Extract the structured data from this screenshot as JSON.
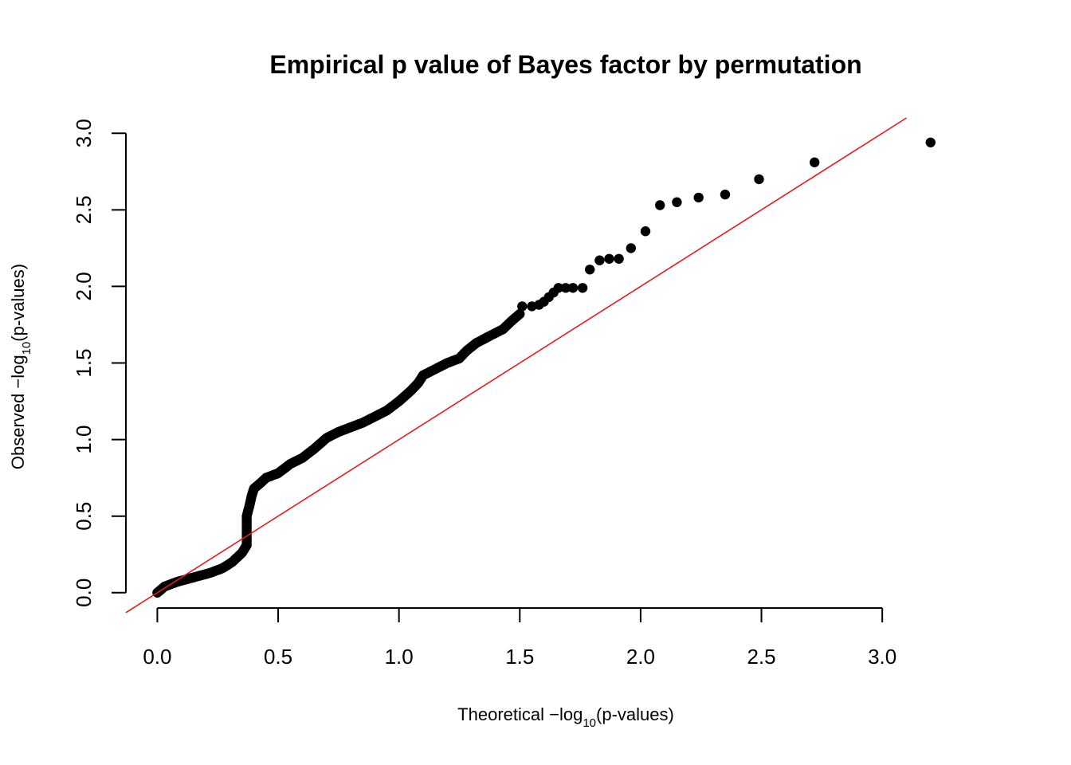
{
  "chart_data": {
    "type": "scatter",
    "title": "Empirical p value of Bayes factor by permutation",
    "xlabel": {
      "prefix": "Theoretical −log",
      "sub": "10",
      "suffix": "(p-values)"
    },
    "ylabel": {
      "prefix": "Observed −log",
      "sub": "10",
      "suffix": "(p-values)"
    },
    "xlim": [
      -0.13,
      3.26
    ],
    "ylim": [
      -0.1,
      3.1
    ],
    "x_ticks": [
      "0.0",
      "0.5",
      "1.0",
      "1.5",
      "2.0",
      "2.5",
      "3.0"
    ],
    "y_ticks": [
      "0.0",
      "0.5",
      "1.0",
      "1.5",
      "2.0",
      "2.5",
      "3.0"
    ],
    "grid": false,
    "reference_line": {
      "intercept": 0,
      "slope": 1,
      "color": "#e41a1c"
    },
    "point_color": "#000000",
    "curve_nodes": [
      [
        0.0,
        0.0
      ],
      [
        0.03,
        0.04
      ],
      [
        0.08,
        0.07
      ],
      [
        0.15,
        0.1
      ],
      [
        0.22,
        0.13
      ],
      [
        0.27,
        0.16
      ],
      [
        0.31,
        0.2
      ],
      [
        0.35,
        0.26
      ],
      [
        0.37,
        0.31
      ],
      [
        0.37,
        0.41
      ],
      [
        0.37,
        0.5
      ],
      [
        0.38,
        0.56
      ],
      [
        0.39,
        0.63
      ],
      [
        0.4,
        0.68
      ],
      [
        0.43,
        0.72
      ],
      [
        0.45,
        0.75
      ],
      [
        0.5,
        0.78
      ],
      [
        0.55,
        0.84
      ],
      [
        0.6,
        0.88
      ],
      [
        0.65,
        0.94
      ],
      [
        0.7,
        1.01
      ],
      [
        0.75,
        1.05
      ],
      [
        0.8,
        1.08
      ],
      [
        0.85,
        1.11
      ],
      [
        0.9,
        1.15
      ],
      [
        0.95,
        1.19
      ],
      [
        1.0,
        1.25
      ],
      [
        1.05,
        1.32
      ],
      [
        1.08,
        1.37
      ],
      [
        1.1,
        1.42
      ],
      [
        1.15,
        1.46
      ],
      [
        1.2,
        1.5
      ],
      [
        1.25,
        1.53
      ],
      [
        1.28,
        1.58
      ],
      [
        1.32,
        1.63
      ],
      [
        1.38,
        1.68
      ],
      [
        1.43,
        1.72
      ],
      [
        1.47,
        1.78
      ],
      [
        1.5,
        1.82
      ]
    ],
    "tail_points": [
      [
        1.51,
        1.87
      ],
      [
        1.55,
        1.87
      ],
      [
        1.58,
        1.88
      ],
      [
        1.6,
        1.9
      ],
      [
        1.62,
        1.93
      ],
      [
        1.64,
        1.96
      ],
      [
        1.66,
        1.99
      ],
      [
        1.69,
        1.99
      ],
      [
        1.72,
        1.99
      ],
      [
        1.76,
        1.99
      ],
      [
        1.79,
        2.11
      ],
      [
        1.83,
        2.17
      ],
      [
        1.87,
        2.18
      ],
      [
        1.91,
        2.18
      ],
      [
        1.96,
        2.25
      ],
      [
        2.02,
        2.36
      ],
      [
        2.08,
        2.53
      ],
      [
        2.15,
        2.55
      ],
      [
        2.24,
        2.58
      ],
      [
        2.35,
        2.6
      ],
      [
        2.49,
        2.7
      ],
      [
        2.72,
        2.81
      ],
      [
        3.2,
        2.94
      ]
    ]
  }
}
